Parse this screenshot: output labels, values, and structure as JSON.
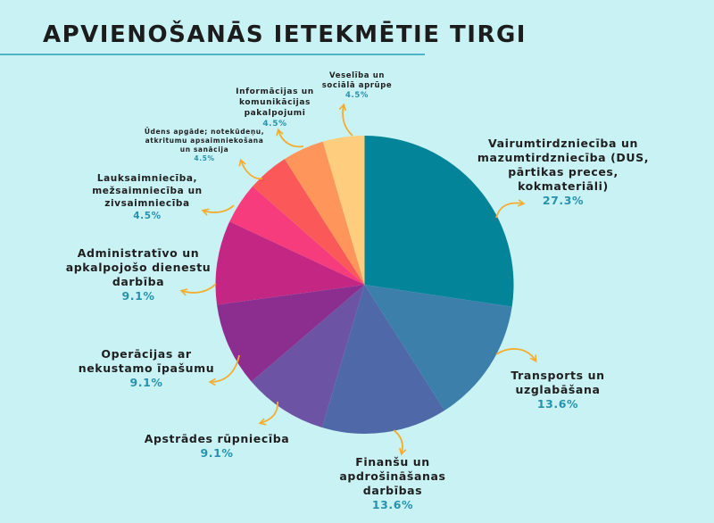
{
  "title": "APVIENOŠANĀS IETEKMĒTIE TIRGI",
  "colors": {
    "background": "#c9f2f5",
    "divider": "#4fb3c6",
    "percent_text": "#2792ad",
    "arrow": "#f5ac2e"
  },
  "chart_data": {
    "type": "pie",
    "title": "APVIENOŠANĀS IETEKMĒTIE TIRGI",
    "unit": "%",
    "start_angle": "top (12 o'clock), clockwise",
    "legend": "none (callout labels with arrows)",
    "slices": [
      {
        "label": "Vairumtirdzniecība un mazumtirdzniecība (DUS, pārtikas preces, kokmateriāli)",
        "value": 27.3,
        "color": "#038498"
      },
      {
        "label": "Transports un uzglabāšana",
        "value": 13.6,
        "color": "#3d7fab"
      },
      {
        "label": "Finanšu un apdrošināšanas darbības",
        "value": 13.6,
        "color": "#4f68a8"
      },
      {
        "label": "Apstrādes rūpniecība",
        "value": 9.1,
        "color": "#6d53a4"
      },
      {
        "label": "Operācijas ar nekustamo īpašumu",
        "value": 9.1,
        "color": "#8b2e8f"
      },
      {
        "label": "Administratīvo un apkalpojošo dienestu darbība",
        "value": 9.1,
        "color": "#c42684"
      },
      {
        "label": "Lauksaimniecība, mežsaimniecība un zivsaimniecība",
        "value": 4.5,
        "color": "#f63c7c"
      },
      {
        "label": "Ūdens apgāde; notekūdeņu, atkritumu apsaimniekošana un sanācija",
        "value": 4.5,
        "color": "#fb585a"
      },
      {
        "label": "Informācijas un komunikācijas pakalpojumi",
        "value": 4.5,
        "color": "#fe955a"
      },
      {
        "label": "Veselība un sociālā aprūpe",
        "value": 4.5,
        "color": "#fecd7d"
      }
    ]
  },
  "labels": [
    {
      "lines": [
        "Vairumtirdzniecība un",
        "mazumtirdzniecība (DUS,",
        "pārtikas preces,",
        "kokmateriāli)"
      ],
      "pct": "27.3%"
    },
    {
      "lines": [
        "Transports un",
        "uzglabāšana"
      ],
      "pct": "13.6%"
    },
    {
      "lines": [
        "Finanšu un",
        "apdrošināšanas",
        "darbības"
      ],
      "pct": "13.6%"
    },
    {
      "lines": [
        "Apstrādes rūpniecība"
      ],
      "pct": "9.1%"
    },
    {
      "lines": [
        "Operācijas ar",
        "nekustamo īpašumu"
      ],
      "pct": "9.1%"
    },
    {
      "lines": [
        "Administratīvo un",
        "apkalpojošo dienestu",
        "darbība"
      ],
      "pct": "9.1%"
    },
    {
      "lines": [
        "Lauksaimniecība,",
        "mežsaimniecība un",
        "zivsaimniecība"
      ],
      "pct": "4.5%"
    },
    {
      "lines": [
        "Ūdens apgāde; notekūdeņu,",
        "atkritumu apsaimniekošana",
        "un sanācija"
      ],
      "pct": "4.5%"
    },
    {
      "lines": [
        "Informācijas un",
        "komunikācijas",
        "pakalpojumi"
      ],
      "pct": "4.5%"
    },
    {
      "lines": [
        "Veselība un",
        "sociālā aprūpe"
      ],
      "pct": "4.5%"
    }
  ]
}
